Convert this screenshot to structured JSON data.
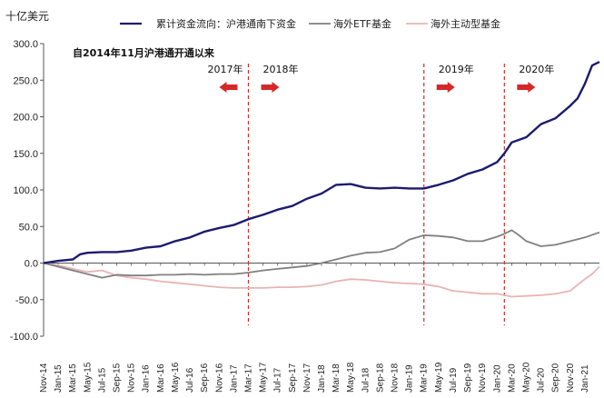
{
  "chart_data": {
    "type": "line",
    "unit_label": "十亿美元",
    "annotation": "自2014年11月沪港通开通以来",
    "ylim": [
      -100,
      300
    ],
    "yticks": [
      "300.0",
      "250.0",
      "200.0",
      "150.0",
      "100.0",
      "50.0",
      "0.0",
      "-50.0",
      "-100.0"
    ],
    "ytick_values": [
      300,
      250,
      200,
      150,
      100,
      50,
      0,
      -50,
      -100
    ],
    "xticks": [
      "Nov-14",
      "Jan-15",
      "Mar-15",
      "May-15",
      "Jul-15",
      "Sep-15",
      "Nov-15",
      "Jan-16",
      "Mar-16",
      "May-16",
      "Jul-16",
      "Sep-16",
      "Nov-16",
      "Jan-17",
      "Mar-17",
      "May-17",
      "Jul-17",
      "Sep-17",
      "Nov-17",
      "Jan-18",
      "Mar-18",
      "May-18",
      "Jul-18",
      "Sep-18",
      "Nov-18",
      "Jan-19",
      "Mar-19",
      "May-19",
      "Jul-19",
      "Sep-19",
      "Nov-19",
      "Jan-20",
      "Mar-20",
      "May-20",
      "Jul-20",
      "Sep-20",
      "Nov-20",
      "Jan-21"
    ],
    "grid": false,
    "legend_position": "top",
    "colors": {
      "south": "#1c1c6e",
      "etf": "#808080",
      "active": "#e8b4b4",
      "marker": "#d62828"
    },
    "series": [
      {
        "name": "累计资金流向：沪港通南下资金",
        "x": [
          "Nov-14",
          "Jan-15",
          "Mar-15",
          "Apr-15",
          "May-15",
          "Jul-15",
          "Sep-15",
          "Nov-15",
          "Jan-16",
          "Mar-16",
          "May-16",
          "Jul-16",
          "Sep-16",
          "Nov-16",
          "Jan-17",
          "Mar-17",
          "May-17",
          "Jul-17",
          "Sep-17",
          "Nov-17",
          "Jan-18",
          "Mar-18",
          "May-18",
          "Jul-18",
          "Sep-18",
          "Nov-18",
          "Jan-19",
          "Mar-19",
          "May-19",
          "Jul-19",
          "Sep-19",
          "Nov-19",
          "Jan-20",
          "Feb-20",
          "Mar-20",
          "May-20",
          "Jul-20",
          "Sep-20",
          "Nov-20",
          "Dec-20",
          "Jan-21",
          "Feb-21",
          "Mar-21"
        ],
        "values": [
          0,
          3,
          5,
          12,
          14,
          15,
          15,
          17,
          21,
          23,
          30,
          35,
          43,
          48,
          52,
          60,
          66,
          73,
          78,
          88,
          95,
          107,
          108,
          103,
          102,
          103,
          102,
          102,
          107,
          113,
          122,
          128,
          138,
          150,
          165,
          172,
          190,
          198,
          215,
          225,
          245,
          270,
          275
        ]
      },
      {
        "name": "海外ETF基金",
        "x": [
          "Nov-14",
          "Jan-15",
          "Mar-15",
          "May-15",
          "Jul-15",
          "Sep-15",
          "Nov-15",
          "Jan-16",
          "Mar-16",
          "May-16",
          "Jul-16",
          "Sep-16",
          "Nov-16",
          "Jan-17",
          "Mar-17",
          "May-17",
          "Jul-17",
          "Sep-17",
          "Nov-17",
          "Jan-18",
          "Mar-18",
          "May-18",
          "Jul-18",
          "Sep-18",
          "Nov-18",
          "Jan-19",
          "Mar-19",
          "May-19",
          "Jul-19",
          "Sep-19",
          "Nov-19",
          "Jan-20",
          "Feb-20",
          "Mar-20",
          "Apr-20",
          "May-20",
          "Jul-20",
          "Sep-20",
          "Nov-20",
          "Jan-21",
          "Mar-21"
        ],
        "values": [
          0,
          -5,
          -10,
          -15,
          -20,
          -16,
          -17,
          -17,
          -16,
          -16,
          -15,
          -16,
          -15,
          -15,
          -13,
          -10,
          -8,
          -6,
          -4,
          0,
          5,
          10,
          14,
          15,
          20,
          32,
          38,
          37,
          35,
          30,
          30,
          36,
          40,
          45,
          38,
          30,
          23,
          25,
          30,
          35,
          42
        ]
      },
      {
        "name": "海外主动型基金",
        "x": [
          "Nov-14",
          "Jan-15",
          "Mar-15",
          "May-15",
          "Jul-15",
          "Sep-15",
          "Nov-15",
          "Jan-16",
          "Mar-16",
          "May-16",
          "Jul-16",
          "Sep-16",
          "Nov-16",
          "Jan-17",
          "Mar-17",
          "May-17",
          "Jul-17",
          "Sep-17",
          "Nov-17",
          "Jan-18",
          "Mar-18",
          "May-18",
          "Jul-18",
          "Sep-18",
          "Nov-18",
          "Jan-19",
          "Mar-19",
          "May-19",
          "Jul-19",
          "Sep-19",
          "Nov-19",
          "Jan-20",
          "Mar-20",
          "May-20",
          "Jul-20",
          "Sep-20",
          "Nov-20",
          "Dec-20",
          "Jan-21",
          "Feb-21",
          "Mar-21"
        ],
        "values": [
          0,
          -3,
          -8,
          -12,
          -10,
          -17,
          -20,
          -22,
          -25,
          -27,
          -29,
          -31,
          -33,
          -34,
          -34,
          -34,
          -33,
          -33,
          -32,
          -30,
          -25,
          -22,
          -23,
          -25,
          -27,
          -28,
          -29,
          -32,
          -38,
          -40,
          -42,
          -42,
          -46,
          -45,
          -44,
          -42,
          -38,
          -30,
          -22,
          -15,
          -5
        ]
      }
    ],
    "markers": [
      {
        "x": "Mar-17",
        "year_label": "2017年",
        "arrow_left": "left",
        "label_side": "left"
      },
      {
        "x": "Mar-17",
        "year_label": "2018年",
        "arrow_left": "right",
        "label_side": "right"
      },
      {
        "x": "Mar-19",
        "year_label": "2019年",
        "arrow_left": "right",
        "label_side": "right"
      },
      {
        "x": "Feb-20",
        "year_label": "2020年",
        "arrow_left": "right",
        "label_side": "right"
      }
    ]
  }
}
